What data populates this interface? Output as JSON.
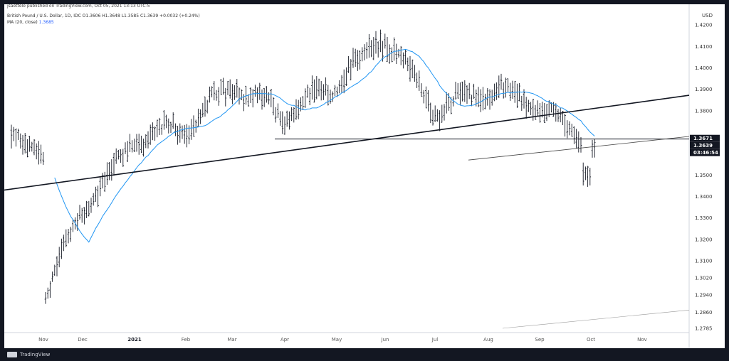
{
  "header": {
    "published_line": "jsaettele published on TradingView.com, Oct 05, 2021 13:13 UTC-5",
    "symbol_line": "British Pound / U.S. Dollar, 1D, IDC  O1.3606  H1.3648  L1.3585  C1.3639  +0.0032 (+0.24%)",
    "ma_label": "MA (20, close)",
    "ma_value": "1.3685"
  },
  "footer": {
    "brand": "TradingView"
  },
  "price_scale": {
    "currency": "USD",
    "ticks": [
      "1.4200",
      "1.4100",
      "1.4000",
      "1.3900",
      "1.3800",
      "1.3500",
      "1.3400",
      "1.3300",
      "1.3200",
      "1.3100",
      "1.3020",
      "1.2940",
      "1.2860",
      "1.2785"
    ],
    "tags": [
      {
        "label": "1.3671",
        "value": 1.3671,
        "color": "#131722"
      },
      {
        "label": "1.3639",
        "value": 1.3639,
        "color": "#131722"
      },
      {
        "label": "03:46:54",
        "value": 1.3611,
        "color": "#131722"
      }
    ]
  },
  "colors": {
    "ma_line": "#2196f3",
    "bars": "#131722",
    "background": "#ffffff",
    "frame": "#131722"
  },
  "chart_data": {
    "type": "ohlc",
    "title": "British Pound / U.S. Dollar, 1D, IDC",
    "x_axis_labels": [
      "Nov",
      "Dec",
      "2021",
      "Feb",
      "Mar",
      "Apr",
      "May",
      "Jun",
      "Jul",
      "Aug",
      "Sep",
      "Oct",
      "Nov"
    ],
    "ylim": [
      1.2785,
      1.427
    ],
    "last": {
      "open": 1.3606,
      "high": 1.3648,
      "low": 1.3585,
      "close": 1.3639
    },
    "series": [
      {
        "name": "MA (20, close)",
        "last_value": 1.3685
      }
    ],
    "path_keypoints": [
      {
        "x_label": "Nov",
        "price": 1.292
      },
      {
        "x_label": "Dec",
        "price": 1.334
      },
      {
        "x_label": "2021",
        "price": 1.366
      },
      {
        "x_label": "Feb",
        "price": 1.372
      },
      {
        "x_label": "Mar",
        "price": 1.392
      },
      {
        "x_label": "Apr",
        "price": 1.378
      },
      {
        "x_label": "May",
        "price": 1.392
      },
      {
        "x_label": "Jun",
        "price": 1.415
      },
      {
        "x_label": "Jul",
        "price": 1.38
      },
      {
        "x_label": "Aug",
        "price": 1.39
      },
      {
        "x_label": "Sep",
        "price": 1.382
      },
      {
        "x_label": "Oct",
        "price": 1.363
      }
    ],
    "trendlines": [
      {
        "from": {
          "x_label": "Oct",
          "price": 1.343
        },
        "to": {
          "x_label": "Nov+",
          "price": 1.3872
        }
      },
      {
        "from": {
          "x_label": "Mar",
          "price": 1.3668
        },
        "to": {
          "x_label": "Oct",
          "price": 1.3668
        }
      },
      {
        "from": {
          "x_label": "Jul",
          "price": 1.357
        },
        "to": {
          "x_label": "Nov",
          "price": 1.368
        }
      },
      {
        "from": {
          "x_label": "Jul",
          "price": 1.2785
        },
        "to": {
          "x_label": "Nov",
          "price": 1.287
        }
      }
    ],
    "grid": false
  }
}
